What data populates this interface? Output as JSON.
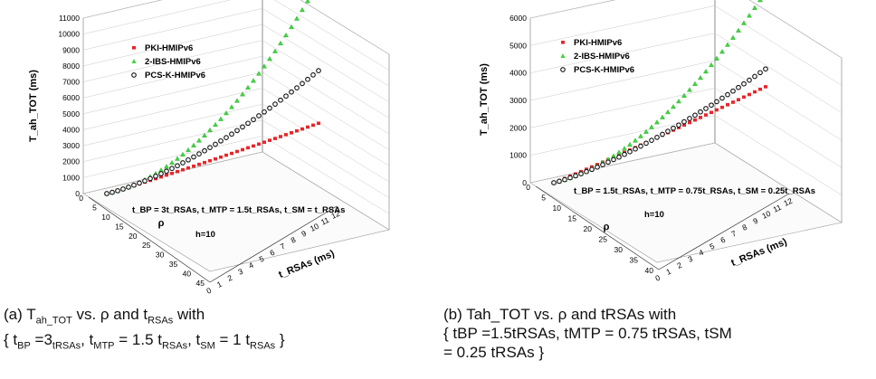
{
  "chart_data": [
    {
      "type": "scatter",
      "title": "",
      "zlabel": "T_ah_TOT (ms)",
      "xlabel": "ρ",
      "ylabel": "t_RSAs (ms)",
      "annotation": "t_BP = 3t_RSAs, t_MTP = 1.5t_RSAs, t_SM = t_RSAs",
      "h_label": "h=10",
      "zlim": [
        0,
        11000
      ],
      "z_ticks": [
        "0",
        "1000",
        "2000",
        "3000",
        "4000",
        "5000",
        "6000",
        "7000",
        "8000",
        "9000",
        "10000",
        "11000"
      ],
      "rho_ticks": [
        "0",
        "5",
        "10",
        "15",
        "20",
        "25",
        "30",
        "35",
        "40",
        "45"
      ],
      "t_ticks": [
        "0",
        "1",
        "2",
        "3",
        "4",
        "5",
        "6",
        "7",
        "8",
        "9",
        "10",
        "11",
        "12"
      ],
      "legend_placement": "upper-left",
      "series": [
        {
          "name": "PKI-HMIPv6",
          "color": "#e8262a",
          "max_value": 1800
        },
        {
          "name": "2-IBS-HMIPv6",
          "color": "#3fd63f",
          "max_value": 10600
        },
        {
          "name": "PCS-K-HMIPv6",
          "color": "#111111",
          "max_value": 5100
        }
      ],
      "points_per_series": 40
    },
    {
      "type": "scatter",
      "title": "",
      "zlabel": "T_ah_TOT (ms)",
      "xlabel": "ρ",
      "ylabel": "t_RSAs (ms)",
      "annotation": "t_BP = 1.5t_RSAs, t_MTP = 0.75t_RSAs, t_SM = 0.25t_RSAs",
      "h_label": "h=10",
      "zlim": [
        0,
        6000
      ],
      "z_ticks": [
        "0",
        "1000",
        "2000",
        "3000",
        "4000",
        "5000",
        "6000"
      ],
      "rho_ticks": [
        "0",
        "5",
        "10",
        "15",
        "20",
        "25",
        "30",
        "35",
        "40"
      ],
      "t_ticks": [
        "0",
        "1",
        "2",
        "3",
        "4",
        "5",
        "6",
        "7",
        "8",
        "9",
        "10",
        "11",
        "12"
      ],
      "legend_placement": "upper-left",
      "series": [
        {
          "name": "PKI-HMIPv6",
          "color": "#e8262a",
          "max_value": 1850
        },
        {
          "name": "2-IBS-HMIPv6",
          "color": "#3fd63f",
          "max_value": 5300
        },
        {
          "name": "PCS-K-HMIPv6",
          "color": "#111111",
          "max_value": 2500
        }
      ],
      "points_per_series": 40
    }
  ],
  "captions": {
    "a": {
      "l1_p1": "(a) T",
      "l1_sub1": "ah_TOT",
      "l1_p2": " vs. ρ and t",
      "l1_sub2": "RSAs",
      "l1_p3": " with",
      "l2_p1": "{ t",
      "l2_sub1": "BP",
      "l2_p2": " =3",
      "l2_sub2": "tRSAs",
      "l2_p3": ", t",
      "l2_sub3": "MTP",
      "l2_p4": " = 1.5 t",
      "l2_sub4": "RSAs",
      "l2_p5": ", t",
      "l2_sub5": "SM",
      "l2_p6": " = 1 t",
      "l2_sub6": "RSAs",
      "l2_p7": " }"
    },
    "b": {
      "line1": "(b) Tah_TOT vs. ρ and tRSAs with",
      "line2": "{ tBP =1.5tRSAs, tMTP = 0.75 tRSAs, tSM",
      "line3": "= 0.25 tRSAs }"
    }
  }
}
